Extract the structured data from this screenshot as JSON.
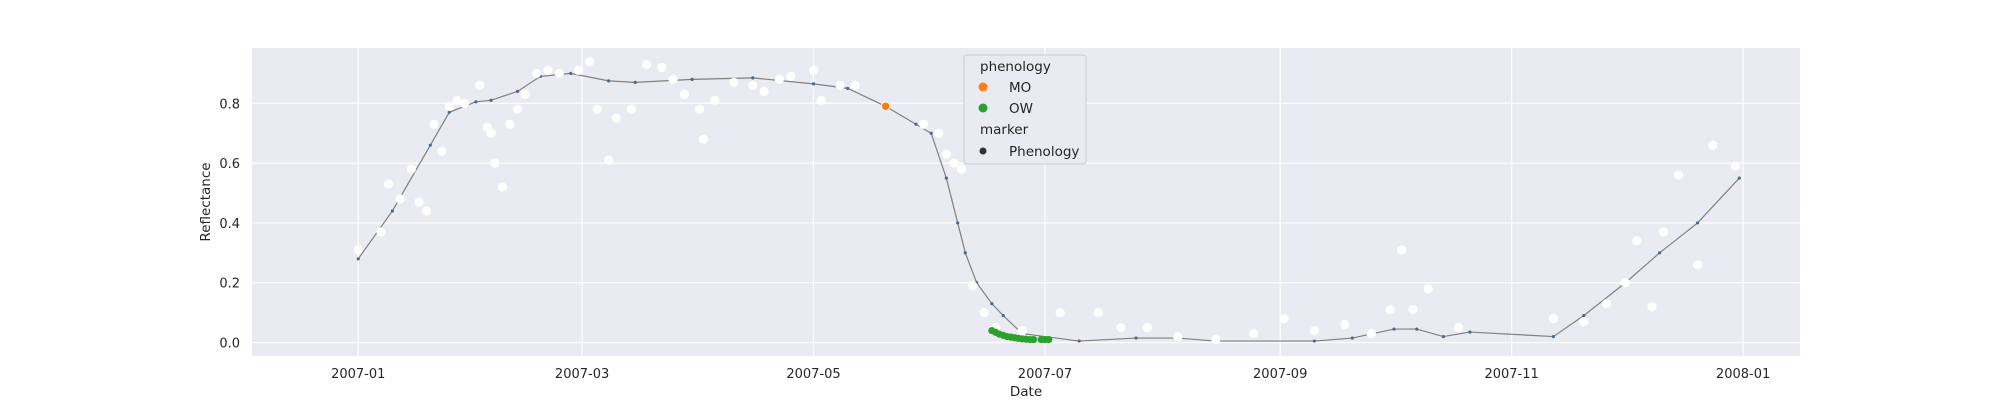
{
  "chart_data": {
    "type": "scatter",
    "title": "",
    "xlabel": "Date",
    "ylabel": "Reflectance",
    "x_range": [
      "2006-12-04",
      "2008-01-16"
    ],
    "y_range": [
      -0.045,
      0.985
    ],
    "x_ticks": [
      "2007-01",
      "2007-03",
      "2007-05",
      "2007-07",
      "2007-09",
      "2007-11",
      "2008-01"
    ],
    "y_ticks": [
      0.0,
      0.2,
      0.4,
      0.6,
      0.8
    ],
    "y_tick_labels": [
      "0.0",
      "0.2",
      "0.4",
      "0.6",
      "0.8"
    ],
    "grid": true,
    "style": {
      "axes_background": "#eaeaf2",
      "grid_color": "#ffffff",
      "observation_color": "#ffffff",
      "smooth_line_color": "#808080",
      "smooth_point_color": "#4c6a8a",
      "mo_color": "#ff7f0e",
      "ow_color": "#2ca02c",
      "legend_marker_color": "#333333"
    },
    "legend": {
      "placement": "top-center",
      "title": "phenology",
      "entries": [
        {
          "label": "MO",
          "color": "#ff7f0e"
        },
        {
          "label": "OW",
          "color": "#2ca02c"
        }
      ],
      "marker_title": "marker",
      "marker_entries": [
        {
          "label": "Phenology",
          "color": "#333333"
        }
      ]
    },
    "smooth_curve": {
      "name": "",
      "x": [
        "2007-01-01",
        "2007-01-10",
        "2007-01-20",
        "2007-01-25",
        "2007-02-01",
        "2007-02-05",
        "2007-02-12",
        "2007-02-18",
        "2007-02-26",
        "2007-03-08",
        "2007-03-15",
        "2007-03-30",
        "2007-04-15",
        "2007-05-01",
        "2007-05-10",
        "2007-05-20",
        "2007-05-28",
        "2007-06-01",
        "2007-06-05",
        "2007-06-08",
        "2007-06-10",
        "2007-06-13",
        "2007-06-17",
        "2007-06-20",
        "2007-06-25",
        "2007-07-10",
        "2007-07-25",
        "2007-08-05",
        "2007-08-15",
        "2007-09-10",
        "2007-09-20",
        "2007-10-01",
        "2007-10-07",
        "2007-10-14",
        "2007-10-21",
        "2007-11-12",
        "2007-11-20",
        "2007-12-01",
        "2007-12-10",
        "2007-12-20",
        "2007-12-31"
      ],
      "y": [
        0.28,
        0.44,
        0.66,
        0.77,
        0.805,
        0.81,
        0.84,
        0.89,
        0.9,
        0.875,
        0.87,
        0.88,
        0.885,
        0.865,
        0.85,
        0.79,
        0.73,
        0.7,
        0.55,
        0.4,
        0.3,
        0.2,
        0.13,
        0.09,
        0.03,
        0.005,
        0.015,
        0.015,
        0.005,
        0.005,
        0.015,
        0.045,
        0.045,
        0.02,
        0.035,
        0.02,
        0.09,
        0.2,
        0.3,
        0.4,
        0.55
      ]
    },
    "observations": {
      "name": "",
      "x": [
        "2007-01-01",
        "2007-01-07",
        "2007-01-09",
        "2007-01-12",
        "2007-01-15",
        "2007-01-17",
        "2007-01-19",
        "2007-01-21",
        "2007-01-23",
        "2007-01-25",
        "2007-01-27",
        "2007-01-29",
        "2007-02-02",
        "2007-02-04",
        "2007-02-05",
        "2007-02-06",
        "2007-02-08",
        "2007-02-10",
        "2007-02-12",
        "2007-02-14",
        "2007-02-17",
        "2007-02-20",
        "2007-02-23",
        "2007-02-28",
        "2007-03-03",
        "2007-03-05",
        "2007-03-08",
        "2007-03-10",
        "2007-03-14",
        "2007-03-18",
        "2007-03-22",
        "2007-03-25",
        "2007-03-28",
        "2007-04-01",
        "2007-04-02",
        "2007-04-05",
        "2007-04-10",
        "2007-04-15",
        "2007-04-18",
        "2007-04-22",
        "2007-04-25",
        "2007-05-01",
        "2007-05-03",
        "2007-05-08",
        "2007-05-12",
        "2007-05-20",
        "2007-05-30",
        "2007-06-03",
        "2007-06-05",
        "2007-06-07",
        "2007-06-09",
        "2007-06-12",
        "2007-06-15",
        "2007-06-18",
        "2007-06-25",
        "2007-07-05",
        "2007-07-15",
        "2007-07-21",
        "2007-07-28",
        "2007-08-05",
        "2007-08-15",
        "2007-08-25",
        "2007-09-02",
        "2007-09-10",
        "2007-09-18",
        "2007-09-25",
        "2007-09-30",
        "2007-10-03",
        "2007-10-06",
        "2007-10-10",
        "2007-10-18",
        "2007-11-12",
        "2007-11-20",
        "2007-11-26",
        "2007-12-01",
        "2007-12-04",
        "2007-12-08",
        "2007-12-11",
        "2007-12-15",
        "2007-12-20",
        "2007-12-24",
        "2007-12-30"
      ],
      "y": [
        0.31,
        0.37,
        0.53,
        0.48,
        0.58,
        0.47,
        0.44,
        0.73,
        0.64,
        0.79,
        0.81,
        0.8,
        0.86,
        0.72,
        0.7,
        0.6,
        0.52,
        0.73,
        0.78,
        0.83,
        0.9,
        0.91,
        0.9,
        0.91,
        0.94,
        0.78,
        0.61,
        0.75,
        0.78,
        0.93,
        0.92,
        0.88,
        0.83,
        0.78,
        0.68,
        0.81,
        0.87,
        0.86,
        0.84,
        0.88,
        0.89,
        0.91,
        0.81,
        0.86,
        0.86,
        0.79,
        0.73,
        0.7,
        0.63,
        0.6,
        0.58,
        0.19,
        0.1,
        0.05,
        0.04,
        0.1,
        0.1,
        0.05,
        0.05,
        0.02,
        0.01,
        0.03,
        0.08,
        0.04,
        0.06,
        0.03,
        0.11,
        0.31,
        0.11,
        0.18,
        0.05,
        0.08,
        0.07,
        0.13,
        0.2,
        0.34,
        0.12,
        0.37,
        0.56,
        0.26,
        0.66,
        0.59
      ]
    },
    "phenology_points": {
      "MO": {
        "x": [
          "2007-05-20"
        ],
        "y": [
          0.79
        ]
      },
      "OW": {
        "x": [
          "2007-06-17",
          "2007-06-18",
          "2007-06-19",
          "2007-06-20",
          "2007-06-21",
          "2007-06-22",
          "2007-06-23",
          "2007-06-24",
          "2007-06-25",
          "2007-06-26",
          "2007-06-27",
          "2007-06-28",
          "2007-06-30",
          "2007-07-01",
          "2007-07-02"
        ],
        "y": [
          0.04,
          0.034,
          0.028,
          0.024,
          0.02,
          0.018,
          0.016,
          0.014,
          0.012,
          0.011,
          0.01,
          0.01,
          0.01,
          0.01,
          0.01
        ]
      }
    }
  }
}
